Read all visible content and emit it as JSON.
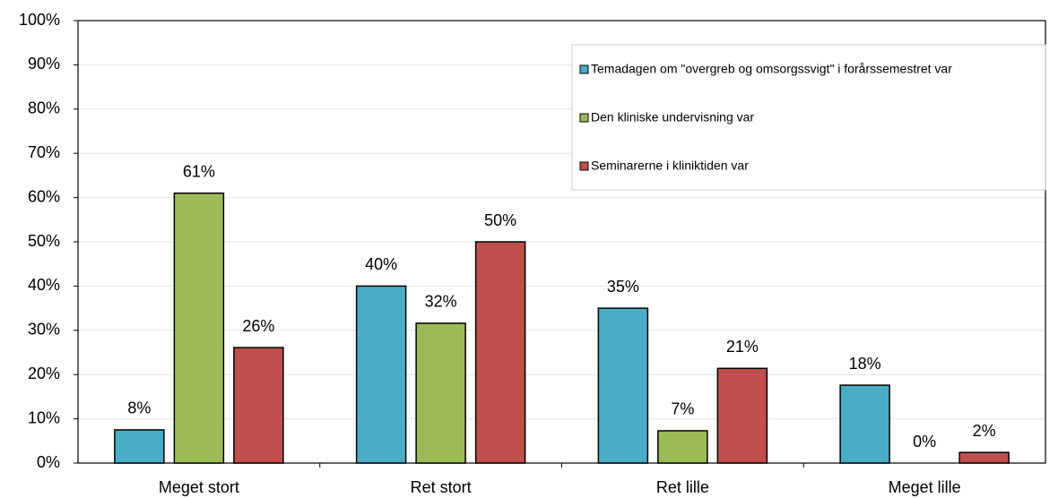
{
  "chart_data": {
    "type": "bar",
    "categories": [
      "Meget stort",
      "Ret stort",
      "Ret lille",
      "Meget lille"
    ],
    "series": [
      {
        "name": "Temadagen om \"overgreb og omsorgssvigt\" i forårssemestret var",
        "color": "#4bacc6",
        "values": [
          7.5,
          40,
          35,
          17.6
        ],
        "value_labels": [
          "8%",
          "40%",
          "35%",
          "18%"
        ]
      },
      {
        "name": "Den kliniske undervisning var",
        "color": "#9bbb59",
        "values": [
          61,
          31.6,
          7.3,
          0
        ],
        "value_labels": [
          "61%",
          "32%",
          "7%",
          "0%"
        ]
      },
      {
        "name": "Seminarerne i kliniktiden var",
        "color": "#c0504d",
        "values": [
          26.1,
          50,
          21.4,
          2.4
        ],
        "value_labels": [
          "26%",
          "50%",
          "21%",
          "2%"
        ]
      }
    ],
    "ylim": [
      0,
      100
    ],
    "yticks": [
      {
        "value": 0,
        "label": "0%"
      },
      {
        "value": 10,
        "label": "10%"
      },
      {
        "value": 20,
        "label": "20%"
      },
      {
        "value": 30,
        "label": "30%"
      },
      {
        "value": 40,
        "label": "40%"
      },
      {
        "value": 50,
        "label": "50%"
      },
      {
        "value": 60,
        "label": "60%"
      },
      {
        "value": 70,
        "label": "70%"
      },
      {
        "value": 80,
        "label": "80%"
      },
      {
        "value": 90,
        "label": "90%"
      },
      {
        "value": 100,
        "label": "100%"
      }
    ],
    "grid": true,
    "legend": "upper right"
  }
}
